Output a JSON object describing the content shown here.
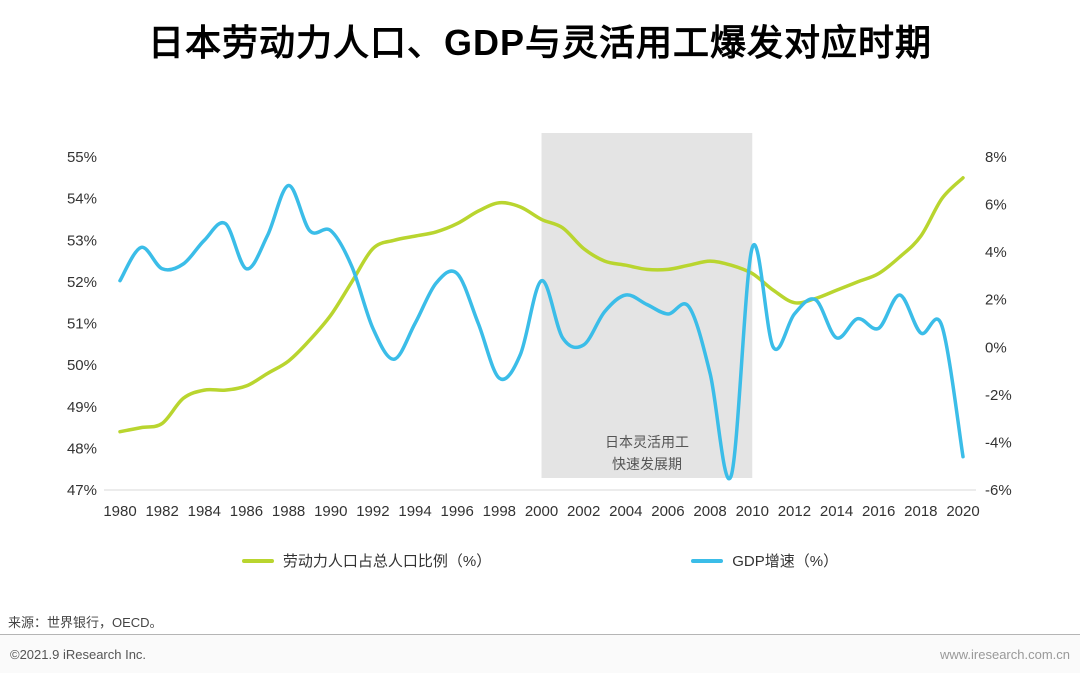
{
  "title": "日本劳动力人口、GDP与灵活用工爆发对应时期",
  "footer": {
    "source": "来源：世界银行，OECD。",
    "copyright": "©2021.9 iResearch Inc.",
    "website": "www.iresearch.com.cn"
  },
  "chart_data": {
    "type": "line",
    "title": "日本劳动力人口、GDP与灵活用工爆发对应时期",
    "x": [
      1980,
      1981,
      1982,
      1983,
      1984,
      1985,
      1986,
      1987,
      1988,
      1989,
      1990,
      1991,
      1992,
      1993,
      1994,
      1995,
      1996,
      1997,
      1998,
      1999,
      2000,
      2001,
      2002,
      2003,
      2004,
      2005,
      2006,
      2007,
      2008,
      2009,
      2010,
      2011,
      2012,
      2013,
      2014,
      2015,
      2016,
      2017,
      2018,
      2019,
      2020
    ],
    "x_ticks": [
      1980,
      1982,
      1984,
      1986,
      1988,
      1990,
      1992,
      1994,
      1996,
      1998,
      2000,
      2002,
      2004,
      2006,
      2008,
      2010,
      2012,
      2014,
      2016,
      2018,
      2020
    ],
    "series": [
      {
        "name": "劳动力人口占总人口比例（%）",
        "axis": "left",
        "color": "#b9d52f",
        "values": [
          48.4,
          48.5,
          48.6,
          49.2,
          49.4,
          49.4,
          49.5,
          49.8,
          50.1,
          50.6,
          51.2,
          52.0,
          52.8,
          53.0,
          53.1,
          53.2,
          53.4,
          53.7,
          53.9,
          53.8,
          53.5,
          53.3,
          52.8,
          52.5,
          52.4,
          52.3,
          52.3,
          52.4,
          52.5,
          52.4,
          52.2,
          51.8,
          51.5,
          51.6,
          51.8,
          52.0,
          52.2,
          52.6,
          53.1,
          54.0,
          54.5
        ]
      },
      {
        "name": "GDP增速（%）",
        "axis": "right",
        "color": "#3bbde8",
        "values": [
          2.8,
          4.2,
          3.3,
          3.5,
          4.5,
          5.2,
          3.3,
          4.7,
          6.8,
          4.9,
          4.9,
          3.4,
          0.8,
          -0.5,
          1.0,
          2.7,
          3.1,
          1.0,
          -1.3,
          -0.3,
          2.8,
          0.4,
          0.1,
          1.5,
          2.2,
          1.8,
          1.4,
          1.7,
          -1.1,
          -5.4,
          4.2,
          0.0,
          1.4,
          2.0,
          0.4,
          1.2,
          0.8,
          2.2,
          0.6,
          0.9,
          -4.6
        ]
      }
    ],
    "left_axis": {
      "min": 47,
      "max": 55,
      "tick_values": [
        55,
        54,
        53,
        52,
        51,
        50,
        49,
        48,
        47
      ],
      "tick_labels": [
        "55%",
        "54%",
        "53%",
        "52%",
        "51%",
        "50%",
        "49%",
        "48%",
        "47%"
      ]
    },
    "right_axis": {
      "min": -6,
      "max": 8,
      "tick_values": [
        8,
        6,
        4,
        2,
        0,
        -2,
        -4,
        -6
      ],
      "tick_labels": [
        "8%",
        "6%",
        "4%",
        "2%",
        "0%",
        "-2%",
        "-4%",
        "-6%"
      ]
    },
    "shaded_region": {
      "from": 2000,
      "to": 2010,
      "label": [
        "日本灵活用工",
        "快速发展期"
      ]
    },
    "grid": "off",
    "legend_position": "bottom"
  }
}
